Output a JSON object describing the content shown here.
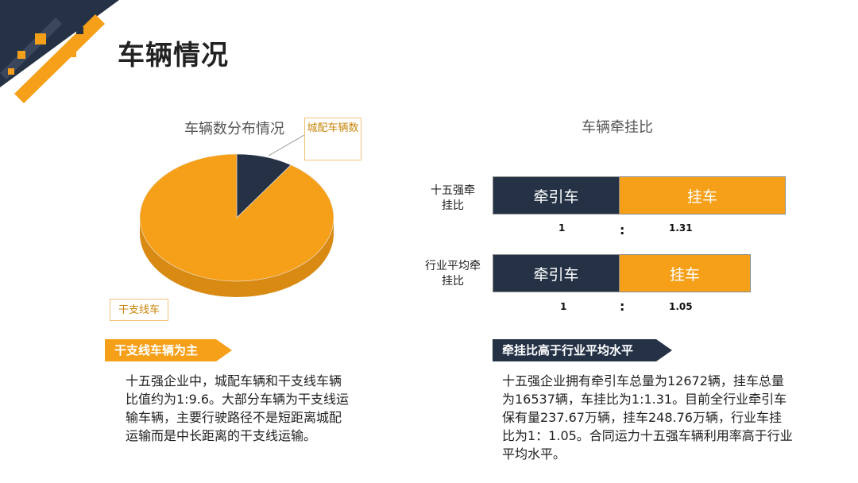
{
  "page": {
    "title": "车辆情况"
  },
  "pie": {
    "title": "车辆数分布情况",
    "labels": {
      "city": "城配车辆数",
      "trunk": "干支线车"
    }
  },
  "ratio": {
    "title": "车辆牵挂比",
    "rows": [
      {
        "label": "十五强牵挂比",
        "tractor": "牵引车",
        "trailer": "挂车",
        "tractor_value": "1",
        "colon": ":",
        "trailer_value": "1.31"
      },
      {
        "label": "行业平均牵挂比",
        "tractor": "牵引车",
        "trailer": "挂车",
        "tractor_value": "1",
        "colon": ":",
        "trailer_value": "1.05"
      }
    ]
  },
  "left_section": {
    "banner": "干支线车辆为主",
    "text": "十五强企业中，城配车辆和干支线车辆比值约为1:9.6。大部分车辆为干支线运输车辆，主要行驶路径不是短距离城配运输而是中长距离的干支线运输。"
  },
  "right_section": {
    "banner": "牵挂比高于行业平均水平",
    "text": "十五强企业拥有牵引车总量为12672辆，挂车总量为16537辆，车挂比为1:1.31。目前全行业牵引车保有量237.67万辆，挂车248.76万辆，行业车挂比为1：1.05。合同运力十五强车辆利用率高于行业平均水平。"
  },
  "colors": {
    "dark": "#253246",
    "orange": "#f6a01a",
    "orange_side": "#d88a12"
  },
  "chart_data": [
    {
      "type": "pie",
      "title": "车辆数分布情况",
      "slices": [
        {
          "name": "城配车辆数",
          "value": 1
        },
        {
          "name": "干支线车",
          "value": 9.6
        }
      ]
    },
    {
      "type": "bar",
      "orientation": "horizontal",
      "stacked": true,
      "title": "车辆牵挂比",
      "categories": [
        "十五强牵挂比",
        "行业平均牵挂比"
      ],
      "series": [
        {
          "name": "牵引车",
          "values": [
            1,
            1
          ]
        },
        {
          "name": "挂车",
          "values": [
            1.31,
            1.05
          ]
        }
      ]
    }
  ]
}
